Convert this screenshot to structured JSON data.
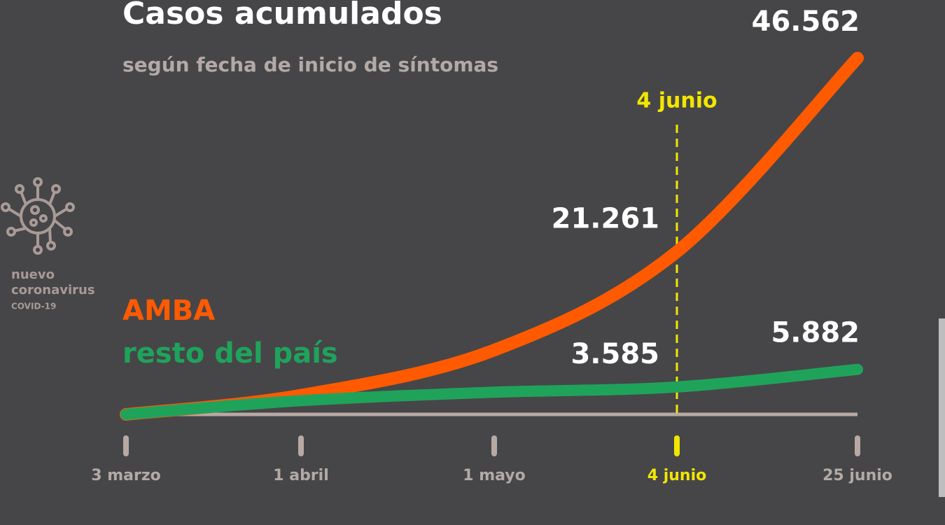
{
  "chart_data": {
    "type": "line",
    "title": "Casos acumulados",
    "subtitle": "según fecha de inicio de síntomas",
    "categories": [
      "3 marzo",
      "1 abril",
      "1 mayo",
      "4 junio",
      "25 junio"
    ],
    "series": [
      {
        "name": "AMBA",
        "color": "#ff5a00",
        "values": [
          0,
          2500,
          8400,
          21261,
          46562
        ],
        "value_labels": [
          null,
          null,
          null,
          "21.261",
          "46.562"
        ]
      },
      {
        "name": "resto del país",
        "color": "#1fa35b",
        "values": [
          0,
          1800,
          2900,
          3585,
          5882
        ],
        "value_labels": [
          null,
          null,
          null,
          "3.585",
          "5.882"
        ]
      }
    ],
    "marker_line": {
      "label": "4 junio",
      "color": "#f2e600"
    },
    "branding": {
      "line1": "nuevo",
      "line2": "coronavirus",
      "line3": "COVID-19"
    }
  }
}
